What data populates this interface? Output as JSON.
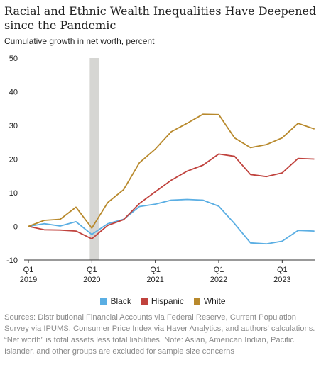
{
  "chart_data": {
    "type": "line",
    "title": "Racial and Ethnic Wealth Inequalities Have Deepened since the Pandemic",
    "subtitle": "Cumulative growth in net worth, percent",
    "x": [
      "2019Q1",
      "2019Q2",
      "2019Q3",
      "2019Q4",
      "2020Q1",
      "2020Q2",
      "2020Q3",
      "2020Q4",
      "2021Q1",
      "2021Q2",
      "2021Q3",
      "2021Q4",
      "2022Q1",
      "2022Q2",
      "2022Q3",
      "2022Q4",
      "2023Q1",
      "2023Q2",
      "2023Q3"
    ],
    "x_ticks": [
      {
        "index": 0,
        "label": "Q1",
        "year": "2019"
      },
      {
        "index": 4,
        "label": "Q1",
        "year": "2020"
      },
      {
        "index": 8,
        "label": "Q1",
        "year": "2021"
      },
      {
        "index": 12,
        "label": "Q1",
        "year": "2022"
      },
      {
        "index": 16,
        "label": "Q1",
        "year": "2023"
      }
    ],
    "y_ticks": [
      50,
      40,
      30,
      20,
      10,
      0,
      -10
    ],
    "ylim": [
      -10,
      50
    ],
    "recession_band": {
      "start_index": 4.0,
      "end_index": 4.3
    },
    "grid": false,
    "legend_position": "bottom",
    "series": [
      {
        "name": "Black",
        "color": "#5aaee3",
        "values": [
          0,
          0.8,
          0.1,
          1.4,
          -2.4,
          0.8,
          2.1,
          5.9,
          6.6,
          7.8,
          8.0,
          7.8,
          6.0,
          0.8,
          -4.9,
          -5.2,
          -4.4,
          -1.2,
          -1.4
        ]
      },
      {
        "name": "Hispanic",
        "color": "#c0423d",
        "values": [
          0,
          -1.0,
          -1.1,
          -1.4,
          -3.7,
          0.3,
          2.0,
          6.8,
          10.3,
          13.7,
          16.4,
          18.2,
          21.5,
          20.8,
          15.4,
          14.8,
          15.9,
          20.2,
          20.0
        ]
      },
      {
        "name": "White",
        "color": "#b8892c",
        "values": [
          0,
          1.8,
          2.1,
          5.7,
          -0.5,
          7.1,
          10.9,
          18.9,
          23.0,
          28.1,
          30.6,
          33.3,
          33.2,
          26.3,
          23.4,
          24.3,
          26.3,
          30.6,
          29.0
        ]
      }
    ]
  },
  "footnote": "Sources: Distributional Financial Accounts via Federal Reserve, Current Population Survey via IPUMS, Consumer Price Index via Haver Analytics, and authors' calculations. “Net worth” is total assets less total liabilities. Note: Asian, American Indian, Pacific Islander, and other groups are excluded for sample size concerns"
}
